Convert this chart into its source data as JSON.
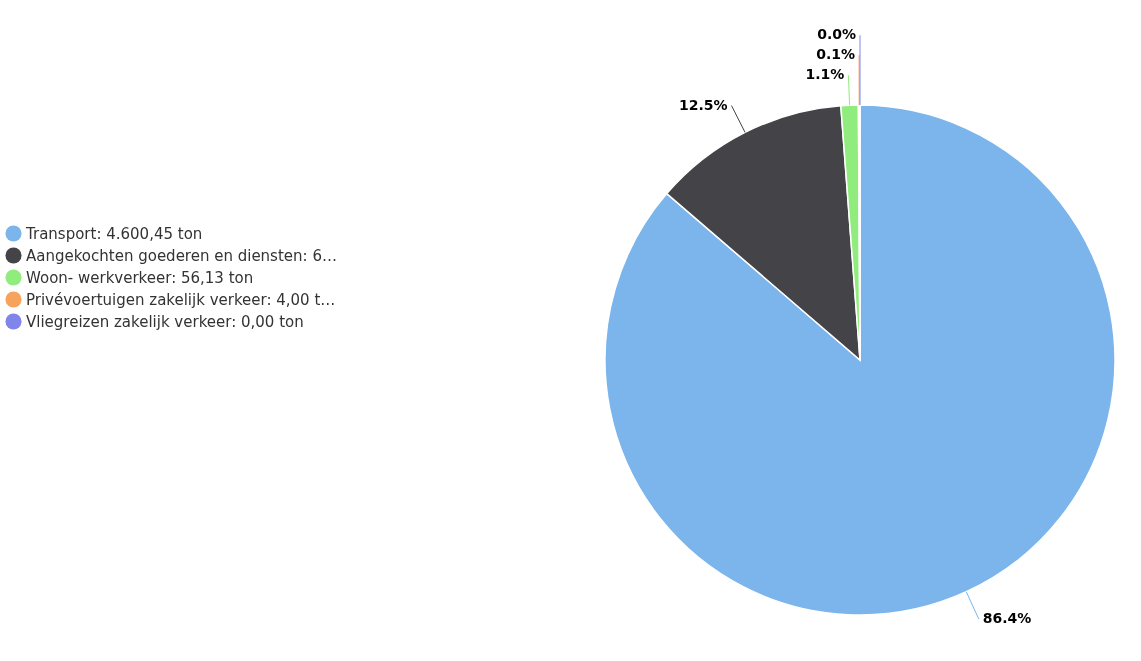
{
  "chart_data": {
    "type": "pie",
    "categories": [
      "Transport: 4.600,45 ton",
      "Aangekochten goederen en diensten: 6…",
      "Woon- werkverkeer: 56,13 ton",
      "Privévoertuigen zakelijk verkeer: 4,00 t…",
      "Vliegreizen zakelijk verkeer: 0,00 ton"
    ],
    "values": [
      86.4,
      12.5,
      1.1,
      0.1,
      0.0
    ],
    "colors": [
      "#7cb5ec",
      "#434348",
      "#90ed7d",
      "#f7a35c",
      "#8085e9"
    ],
    "value_labels": [
      "86.4%",
      "12.5%",
      "1.1%",
      "0.1%",
      "0.0%"
    ],
    "legend": "left"
  }
}
